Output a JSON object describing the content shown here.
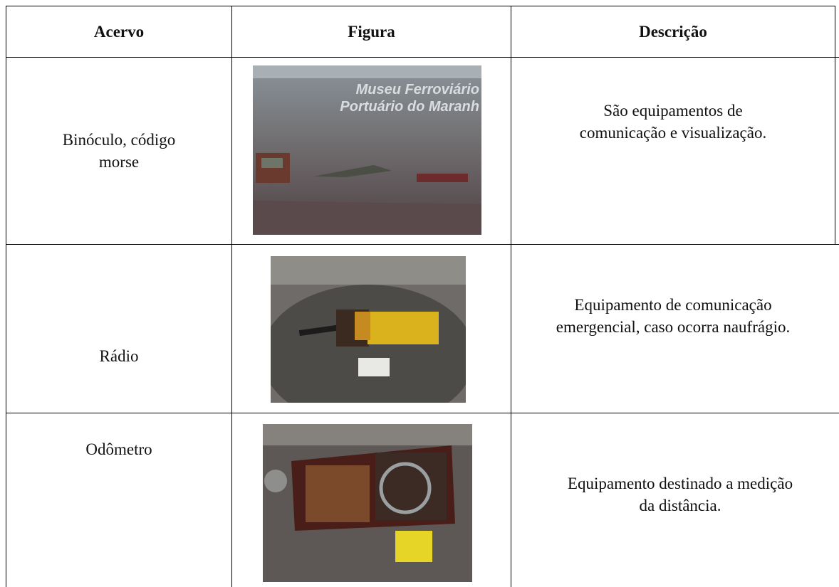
{
  "table": {
    "header": [
      "Acervo",
      "Figura",
      "Descrição"
    ],
    "rows": [
      {
        "acervo": [
          "Binóculo, código",
          "morse"
        ],
        "figura_sign": [
          "Museu Ferroviário",
          "Portuário do Maranh"
        ],
        "descricao": [
          "São equipamentos de",
          "comunicação e visualização."
        ]
      },
      {
        "acervo": [
          "Rádio"
        ],
        "descricao": [
          "Equipamento de comunicação",
          "emergencial, caso ocorra naufrágio."
        ]
      },
      {
        "acervo": [
          "Odômetro"
        ],
        "descricao": [
          "Equipamento destinado a medição",
          "da distância."
        ]
      }
    ]
  }
}
